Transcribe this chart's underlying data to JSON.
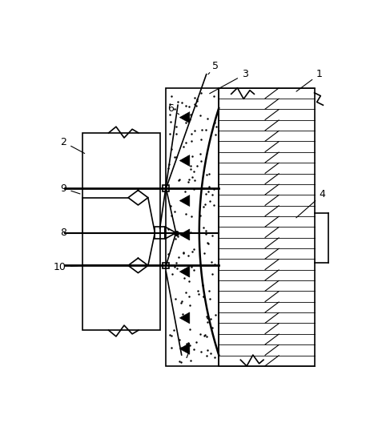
{
  "bg_color": "#ffffff",
  "line_color": "#000000",
  "fig_width": 4.62,
  "fig_height": 5.48,
  "dpi": 100
}
